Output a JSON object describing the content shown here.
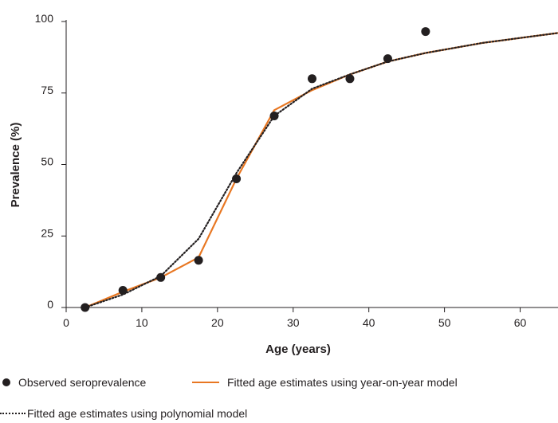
{
  "chart_data": {
    "type": "line",
    "xlabel": "Age (years)",
    "ylabel": "Prevalence (%)",
    "xlim": [
      0,
      65
    ],
    "ylim": [
      0,
      100
    ],
    "xticks": [
      0,
      10,
      20,
      30,
      40,
      50,
      60
    ],
    "yticks": [
      0,
      25,
      50,
      75,
      100
    ],
    "grid": false,
    "legend_position": "bottom",
    "series": [
      {
        "name": "Observed seroprevalence",
        "kind": "scatter",
        "color": "#231f20",
        "x": [
          2.5,
          7.5,
          12.5,
          17.5,
          22.5,
          27.5,
          32.5,
          37.5,
          42.5,
          47.5
        ],
        "y": [
          0,
          6,
          10.5,
          16.5,
          45,
          67,
          80,
          80,
          87,
          96.5
        ]
      },
      {
        "name": "Fitted age estimates using year-on-year model",
        "kind": "line",
        "color": "#e87722",
        "x": [
          2.5,
          7.5,
          12.5,
          17.5,
          22.5,
          27.5,
          32.5,
          37.5,
          42.5,
          47.5,
          55,
          65
        ],
        "y": [
          0,
          5.5,
          10.5,
          17.5,
          45,
          69,
          76,
          81.5,
          86,
          89,
          92.5,
          96
        ]
      },
      {
        "name": "Fitted age estimates using polynomial model",
        "kind": "dotted-line",
        "color": "#231f20",
        "x": [
          2.5,
          7.5,
          12.5,
          17.5,
          22.5,
          27.5,
          32.5,
          37.5,
          42.5,
          47.5,
          55,
          65
        ],
        "y": [
          0,
          4.5,
          11,
          24,
          47,
          67,
          76.5,
          81.5,
          86,
          89,
          92.5,
          96
        ]
      }
    ]
  }
}
